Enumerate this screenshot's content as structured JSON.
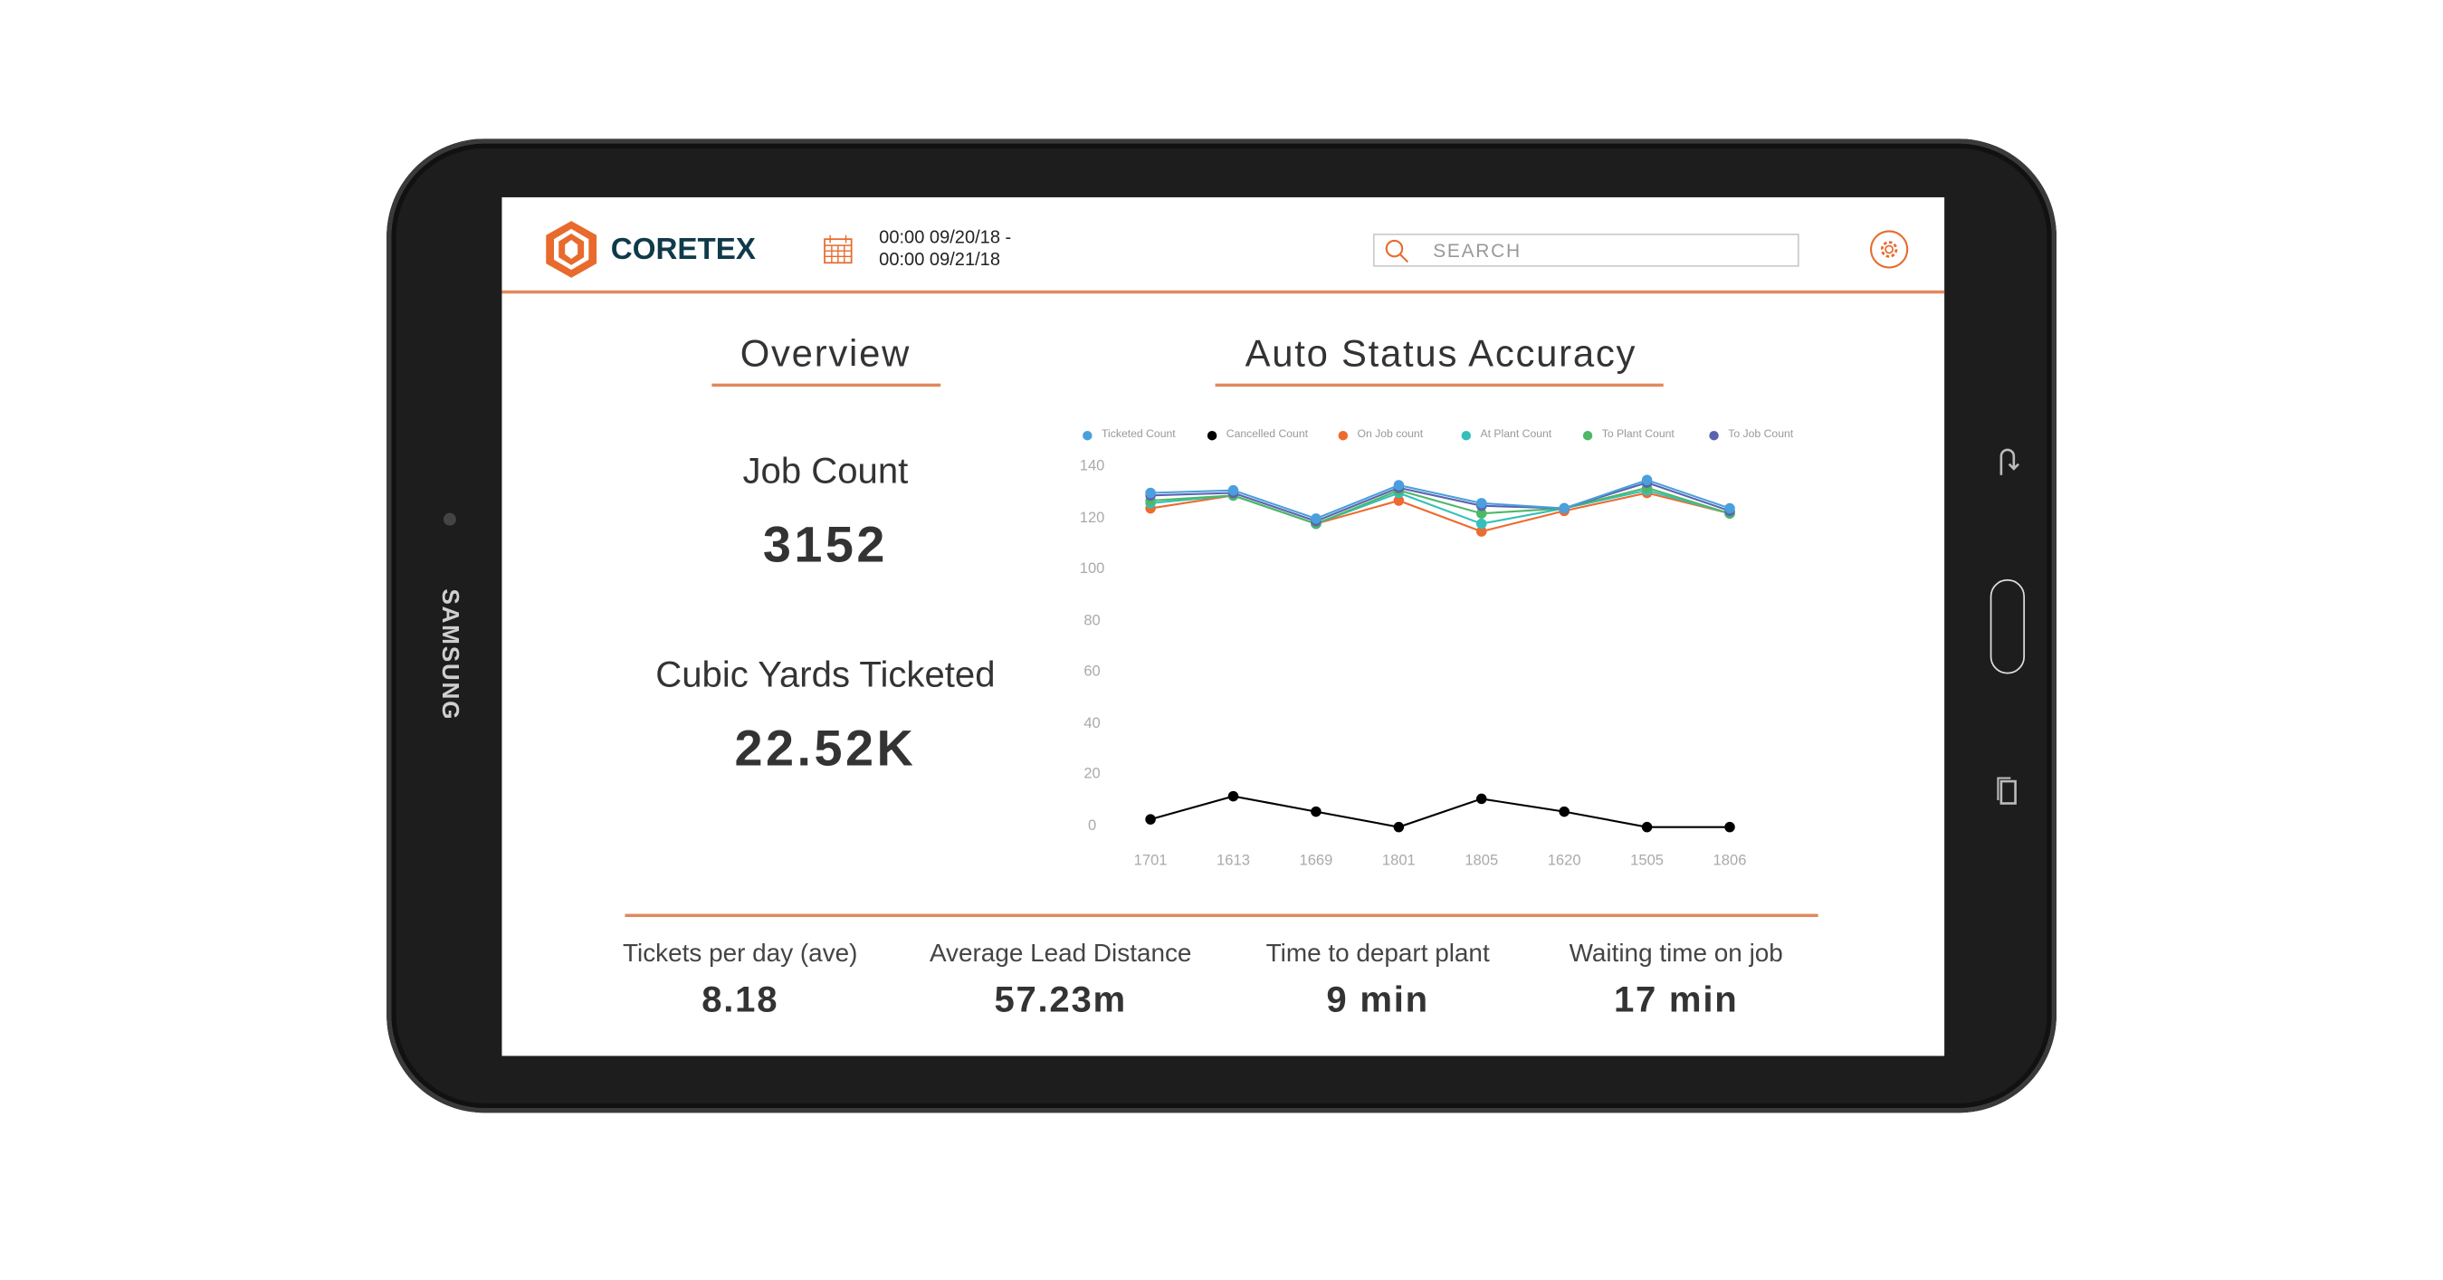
{
  "device": {
    "brand": "SAMSUNG"
  },
  "header": {
    "logo_text": "CORETEX",
    "date_range_start": "00:00 09/20/18 -",
    "date_range_end": "00:00 09/21/18",
    "search_placeholder": "SEARCH",
    "icons": [
      "calendar-icon",
      "search-icon",
      "gear-icon"
    ],
    "accent_color": "#e86a2c",
    "logo_text_color": "#0f3a4a"
  },
  "overview": {
    "title": "Overview",
    "job_count_label": "Job Count",
    "job_count_value": "3152",
    "cubic_yards_label": "Cubic Yards Ticketed",
    "cubic_yards_value": "22.52K"
  },
  "chart_title": "Auto Status Accuracy",
  "chart_data": {
    "type": "line",
    "title": "Auto Status Accuracy",
    "categories": [
      "1701",
      "1613",
      "1669",
      "1801",
      "1805",
      "1620",
      "1505",
      "1806"
    ],
    "ylim": [
      0,
      140
    ],
    "yticks": [
      0,
      20,
      40,
      60,
      80,
      100,
      120,
      140
    ],
    "grid": false,
    "legend_position": "top",
    "series": [
      {
        "name": "Ticketed Count",
        "color": "#4a9fdc",
        "values": [
          130,
          131,
          120,
          133,
          126,
          124,
          135,
          124
        ]
      },
      {
        "name": "Cancelled Count",
        "color": "#000000",
        "values": [
          3,
          12,
          6,
          0,
          11,
          6,
          0,
          0
        ]
      },
      {
        "name": "On Job count",
        "color": "#ee6a2e",
        "values": [
          124,
          129,
          118,
          127,
          115,
          123,
          130,
          122
        ]
      },
      {
        "name": "At Plant Count",
        "color": "#33c0bd",
        "values": [
          126,
          129,
          118,
          130,
          118,
          124,
          131,
          122
        ]
      },
      {
        "name": "To Plant Count",
        "color": "#4db866",
        "values": [
          127,
          129,
          118,
          131,
          122,
          124,
          132,
          122
        ]
      },
      {
        "name": "To Job Count",
        "color": "#5b63b0",
        "values": [
          129,
          130,
          119,
          132,
          125,
          124,
          134,
          123
        ]
      }
    ]
  },
  "stats": [
    {
      "label": "Tickets per day (ave)",
      "value": "8.18"
    },
    {
      "label": "Average Lead Distance",
      "value": "57.23m"
    },
    {
      "label": "Time to depart plant",
      "value": "9 min"
    },
    {
      "label": "Waiting time on job",
      "value": "17 min"
    }
  ]
}
